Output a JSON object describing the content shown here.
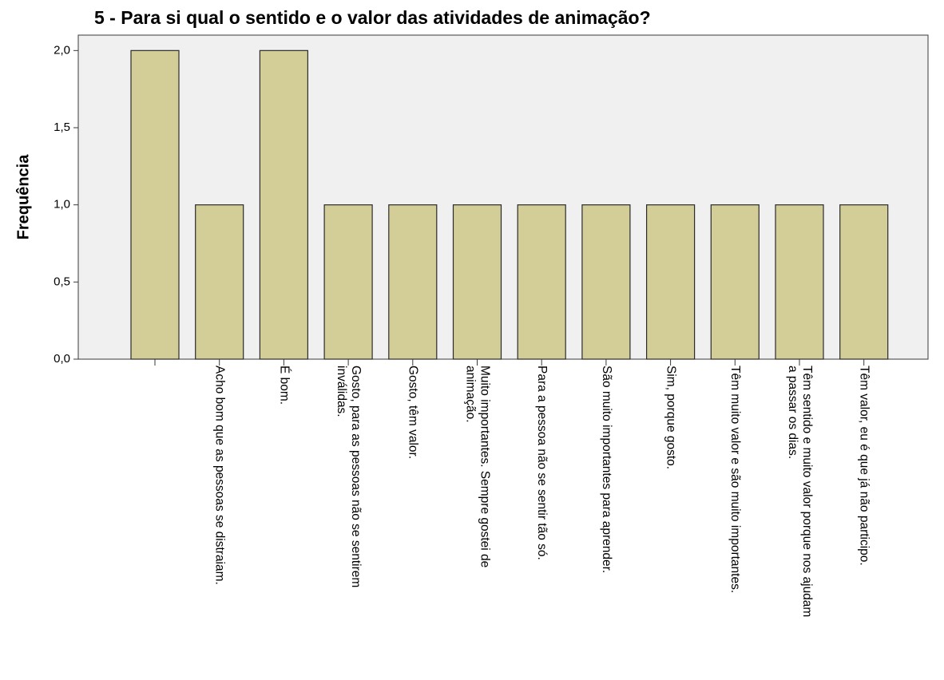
{
  "chart_data": {
    "type": "bar",
    "title": "5 - Para si qual o sentido e o valor das atividades de animação?",
    "y_label": "Frequência",
    "categories": [
      null,
      "Acho bom que as pessoas se distraiam.",
      "É bom.",
      "Gosto, para as pessoas não se sentirem inválidas.",
      "Gosto, têm valor.",
      "Muito importantes. Sempre gostei de animação.",
      "Para a pessoa não se sentir tão só.",
      "São muito importantes para aprender.",
      "Sim, porque gosto.",
      "Têm muito valor e são muito importantes.",
      "Têm sentido e muito valor porque nos ajudam a passar os dias.",
      "Têm valor, eu é que já não participo."
    ],
    "values": [
      2,
      1,
      2,
      1,
      1,
      1,
      1,
      1,
      1,
      1,
      1,
      1
    ],
    "color": "#d3ce97",
    "ylim": [
      0,
      2.1
    ],
    "yticks": [
      {
        "value": 0,
        "label": "0,0"
      },
      {
        "value": 0.5,
        "label": "0,5"
      },
      {
        "value": 1,
        "label": "1,0"
      },
      {
        "value": 1.5,
        "label": "1,5"
      },
      {
        "value": 2,
        "label": "2,0"
      }
    ],
    "grid": false
  }
}
